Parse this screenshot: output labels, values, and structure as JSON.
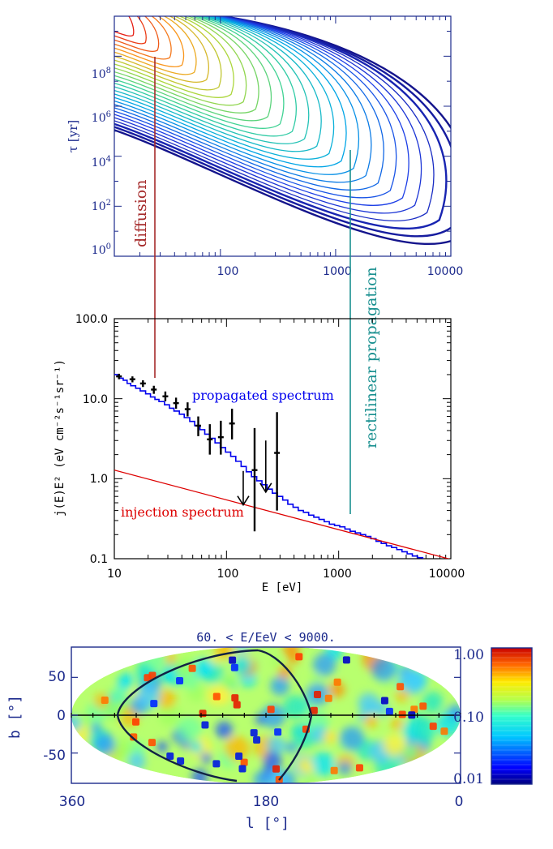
{
  "chart_data": [
    {
      "type": "contour",
      "panel": "top",
      "ylabel": "τ [yr]",
      "y_ticks": [
        "10^0",
        "10^2",
        "10^4",
        "10^6",
        "10^8"
      ],
      "x_ticks": [
        "100",
        "1000",
        "10000"
      ],
      "xlim": [
        12,
        10000
      ],
      "ylim_log10": [
        0,
        9.6
      ],
      "annotations": [
        {
          "text": "diffusion",
          "color": "#a52a2a",
          "x": 25,
          "y_log10_range": [
            2.5,
            8.0
          ]
        },
        {
          "text": "rectilinear propagation",
          "color": "#1a9090",
          "x": 1250,
          "y_log10_range": [
            -0.2,
            4.6
          ]
        }
      ],
      "levels": 28,
      "colormap": "rainbow (red = high, blue = low)"
    },
    {
      "type": "step-line",
      "panel": "middle",
      "xlabel": "E [eV]",
      "ylabel": "j(E)E² (eV cm⁻²s⁻¹sr⁻¹)",
      "y_tick_labels": [
        "100.0",
        "10.0",
        "1.0",
        "0.1"
      ],
      "x_tick_labels": [
        "10",
        "100",
        "1000",
        "10000"
      ],
      "xlim": [
        10,
        10000
      ],
      "ylim": [
        0.1,
        100
      ],
      "annotations": [
        {
          "text": "propagated spectrum",
          "color": "#0000ee"
        },
        {
          "text": "injection spectrum",
          "color": "#dd0000"
        }
      ],
      "series": [
        {
          "name": "propagated spectrum",
          "color": "#0000ee",
          "x": [
            10,
            11,
            12,
            13,
            14,
            15.5,
            17,
            19,
            21,
            23,
            25,
            28,
            31,
            34,
            38,
            42,
            47,
            52,
            58,
            64,
            71,
            79,
            88,
            98,
            109,
            121,
            135,
            150,
            167,
            186,
            207,
            230,
            256,
            285,
            317,
            352,
            392,
            436,
            485,
            540,
            600,
            668,
            743,
            826,
            919,
            1022,
            1137,
            1265,
            1407,
            1565,
            1741,
            1937,
            2154,
            2396,
            2665,
            2965,
            3298,
            3668,
            4080,
            4538,
            5048,
            5615,
            6246,
            6948,
            7728,
            8596,
            9562,
            10000
          ],
          "y": [
            20,
            18,
            17,
            15.5,
            14.5,
            13.5,
            12.5,
            11.5,
            10.5,
            9.8,
            9.2,
            8.4,
            7.6,
            7.0,
            6.4,
            5.8,
            5.2,
            4.6,
            4.1,
            3.6,
            3.2,
            2.8,
            2.45,
            2.15,
            1.9,
            1.65,
            1.42,
            1.22,
            1.06,
            0.94,
            0.84,
            0.74,
            0.66,
            0.6,
            0.54,
            0.48,
            0.44,
            0.4,
            0.38,
            0.35,
            0.33,
            0.31,
            0.29,
            0.27,
            0.26,
            0.25,
            0.235,
            0.22,
            0.21,
            0.2,
            0.19,
            0.178,
            0.165,
            0.155,
            0.145,
            0.138,
            0.13,
            0.122,
            0.115,
            0.108,
            0.103,
            0.098,
            0.098,
            0.098,
            0.098,
            0.098,
            0.098,
            0.098
          ]
        },
        {
          "name": "injection spectrum",
          "color": "#dd0000",
          "x": [
            10,
            10000
          ],
          "y": [
            1.28,
            0.098
          ]
        },
        {
          "name": "data",
          "color": "#000000",
          "points": [
            {
              "x": 11.0,
              "y": 19.0,
              "lo": 17.5,
              "hi": 20.5
            },
            {
              "x": 14.5,
              "y": 17.5,
              "lo": 16.0,
              "hi": 19.0
            },
            {
              "x": 18.0,
              "y": 15.5,
              "lo": 14.0,
              "hi": 17.0
            },
            {
              "x": 22.5,
              "y": 13.0,
              "lo": 11.5,
              "hi": 14.5
            },
            {
              "x": 28.5,
              "y": 10.7,
              "lo": 9.3,
              "hi": 12.3
            },
            {
              "x": 35.5,
              "y": 8.8,
              "lo": 7.5,
              "hi": 10.3
            },
            {
              "x": 45.0,
              "y": 7.4,
              "lo": 6.0,
              "hi": 9.0
            },
            {
              "x": 56.0,
              "y": 4.6,
              "lo": 3.4,
              "hi": 6.0
            },
            {
              "x": 71.0,
              "y": 3.1,
              "lo": 2.0,
              "hi": 4.8
            },
            {
              "x": 89.0,
              "y": 3.3,
              "lo": 2.0,
              "hi": 5.3
            },
            {
              "x": 112.0,
              "y": 4.9,
              "lo": 3.1,
              "hi": 7.5
            },
            {
              "x": 178.0,
              "y": 1.28,
              "lo": 0.22,
              "hi": 4.3
            },
            {
              "x": 282.0,
              "y": 2.1,
              "lo": 0.4,
              "hi": 6.8
            }
          ],
          "upper_limits": [
            {
              "x": 141.0,
              "from": 1.25,
              "to": 0.47
            },
            {
              "x": 224.0,
              "from": 3.0,
              "to": 0.68
            }
          ]
        }
      ]
    },
    {
      "type": "heatmap",
      "panel": "bottom",
      "projection": "Hammer-Aitoff (galactic coordinates)",
      "title": "60. < E/EeV < 9000.",
      "xlabel": "l [°]",
      "ylabel": "b [°]",
      "x_tick_labels": [
        "360",
        "180",
        "0"
      ],
      "y_tick_labels": [
        "50",
        "0",
        "-50"
      ],
      "colorbar": {
        "scale": "log",
        "range": [
          0.01,
          1.0
        ],
        "tick_labels": [
          "1.00",
          "0.10",
          "0.01"
        ]
      },
      "colormap": "jet",
      "overlay": "closed black curve (supergalactic-like plane) and galactic equator line"
    }
  ]
}
